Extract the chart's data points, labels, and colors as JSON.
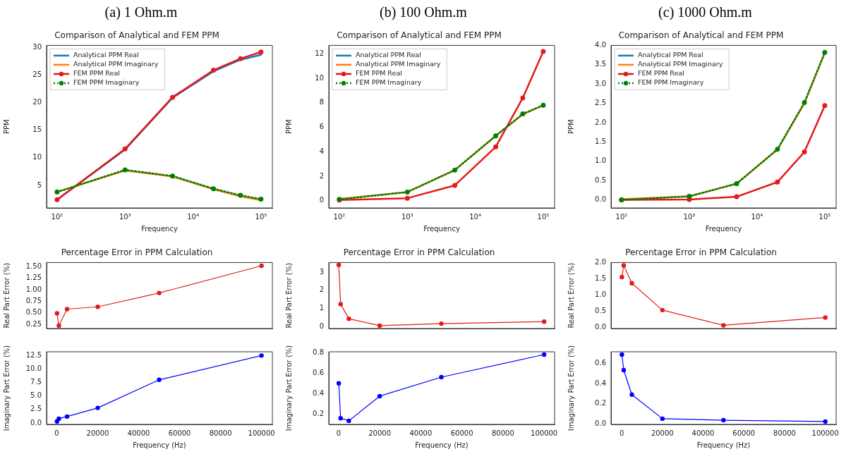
{
  "chart_data": [
    {
      "type": "line",
      "title": "(a) 1 Ohm.m",
      "subtitle": "Comparison of Analytical and FEM PPM",
      "xlabel": "Frequency",
      "ylabel": "PPM",
      "log": "x",
      "legend": "top left",
      "x": [
        100,
        1000,
        5000,
        20000,
        50000,
        100000
      ],
      "xlim": [
        70,
        147000
      ],
      "xticks": [
        {
          "value": 100,
          "label": "10²"
        },
        {
          "value": 1000,
          "label": "10³"
        },
        {
          "value": 10000,
          "label": "10⁴"
        },
        {
          "value": 100000,
          "label": "10⁵"
        }
      ],
      "ylim": [
        0.9,
        30.4
      ],
      "yticks": [
        5,
        10,
        15,
        20,
        25,
        30
      ],
      "series": [
        {
          "name": "Analytical PPM Real",
          "color": "#1f77b4",
          "values": [
            2.4,
            11.5,
            20.9,
            25.7,
            27.8,
            28.7
          ],
          "marker": "none",
          "line_style": "solid"
        },
        {
          "name": "Analytical PPM Imaginary",
          "color": "#ff7f0e",
          "values": [
            3.8,
            7.7,
            6.6,
            4.3,
            3.0,
            2.3
          ],
          "marker": "none",
          "line_style": "solid"
        },
        {
          "name": "FEM PPM Real",
          "color": "#e31a1c",
          "values": [
            2.4,
            11.6,
            21.0,
            25.9,
            28.0,
            29.2
          ],
          "marker": "circle",
          "line_style": "solid"
        },
        {
          "name": "FEM PPM Imaginary",
          "color": "#008000",
          "values": [
            3.8,
            7.8,
            6.7,
            4.4,
            3.2,
            2.5
          ],
          "marker": "circle",
          "line_style": "dotted"
        }
      ]
    },
    {
      "type": "line",
      "title": "(b) 100 Ohm.m",
      "subtitle": "Comparison of Analytical and FEM PPM",
      "xlabel": "Frequency",
      "ylabel": "PPM",
      "log": "x",
      "legend": "top left",
      "x": [
        100,
        1000,
        5000,
        20000,
        50000,
        100000
      ],
      "xlim": [
        70,
        147000
      ],
      "xticks": [
        {
          "value": 100,
          "label": "10²"
        },
        {
          "value": 1000,
          "label": "10³"
        },
        {
          "value": 10000,
          "label": "10⁴"
        },
        {
          "value": 100000,
          "label": "10⁵"
        }
      ],
      "ylim": [
        -0.6,
        12.7
      ],
      "yticks": [
        0,
        2,
        4,
        6,
        8,
        10,
        12
      ],
      "series": [
        {
          "name": "Analytical PPM Real",
          "color": "#1f77b4",
          "values": [
            null,
            null,
            null,
            null,
            null,
            null
          ],
          "marker": "none",
          "line_style": "solid"
        },
        {
          "name": "Analytical PPM Imaginary",
          "color": "#ff7f0e",
          "values": [
            0.13,
            0.7,
            2.5,
            5.3,
            7.05,
            7.8
          ],
          "marker": "none",
          "line_style": "solid"
        },
        {
          "name": "FEM PPM Real",
          "color": "#e31a1c",
          "values": [
            0.05,
            0.2,
            1.25,
            4.4,
            8.4,
            12.2
          ],
          "marker": "circle",
          "line_style": "solid"
        },
        {
          "name": "FEM PPM Imaginary",
          "color": "#008000",
          "values": [
            0.1,
            0.7,
            2.5,
            5.3,
            7.1,
            7.8
          ],
          "marker": "circle",
          "line_style": "dotted"
        }
      ]
    },
    {
      "type": "line",
      "title": "(c) 1000 Ohm.m",
      "subtitle": "Comparison of Analytical and FEM PPM",
      "xlabel": "Frequency",
      "ylabel": "PPM",
      "log": "x",
      "legend": "top left",
      "x": [
        100,
        1000,
        5000,
        20000,
        50000,
        100000
      ],
      "xlim": [
        70,
        147000
      ],
      "xticks": [
        {
          "value": 100,
          "label": "10²"
        },
        {
          "value": 1000,
          "label": "10³"
        },
        {
          "value": 10000,
          "label": "10⁴"
        },
        {
          "value": 100000,
          "label": "10⁵"
        }
      ],
      "ylim": [
        -0.21,
        4.0
      ],
      "yticks": [
        {
          "value": 0,
          "label": "0.0"
        },
        0.5,
        {
          "value": 1,
          "label": "1.0"
        },
        1.5,
        {
          "value": 2,
          "label": "2.0"
        },
        2.5,
        {
          "value": 3,
          "label": "3.0"
        },
        3.5,
        {
          "value": 4,
          "label": "4.0"
        }
      ],
      "series": [
        {
          "name": "Analytical PPM Real",
          "color": "#1f77b4",
          "values": [
            null,
            null,
            null,
            null,
            null,
            null
          ],
          "marker": "none",
          "line_style": "solid"
        },
        {
          "name": "Analytical PPM Imaginary",
          "color": "#ff7f0e",
          "values": [
            0.02,
            0.09,
            0.42,
            1.3,
            2.5,
            3.8
          ],
          "marker": "none",
          "line_style": "solid"
        },
        {
          "name": "FEM PPM Real",
          "color": "#e31a1c",
          "values": [
            0.0,
            0.01,
            0.08,
            0.46,
            1.24,
            2.44
          ],
          "marker": "circle",
          "line_style": "solid"
        },
        {
          "name": "FEM PPM Imaginary",
          "color": "#008000",
          "values": [
            0.0,
            0.09,
            0.42,
            1.31,
            2.52,
            3.82
          ],
          "marker": "circle",
          "line_style": "dotted"
        }
      ]
    },
    {
      "type": "line",
      "title": "Percentage Error in PPM Calculation",
      "ylabel": "Real Part Error (%)",
      "tick_labels": "y",
      "marker": "circle",
      "x": [
        100,
        1000,
        5000,
        20000,
        50000,
        100000
      ],
      "xlim": [
        -5000,
        105300
      ],
      "xticks": [
        0,
        20000,
        40000,
        60000,
        80000,
        100000
      ],
      "ylim": [
        0.16,
        1.59
      ],
      "yticks": [
        0.25,
        {
          "value": 0.5,
          "label": "0.50"
        },
        0.75,
        {
          "value": 1,
          "label": "1.00"
        },
        1.25,
        {
          "value": 1.5,
          "label": "1.50"
        }
      ],
      "series": [
        {
          "color": "#e31a1c",
          "values": [
            0.49,
            0.22,
            0.58,
            0.63,
            0.93,
            1.52
          ]
        }
      ]
    },
    {
      "type": "line",
      "xlabel": "Frequency (Hz)",
      "ylabel": "Imaginary Part Error (%)",
      "marker": "circle",
      "x": [
        100,
        1000,
        5000,
        20000,
        50000,
        100000
      ],
      "xlim": [
        -5000,
        105300
      ],
      "xticks": [
        0,
        20000,
        40000,
        60000,
        80000,
        100000
      ],
      "ylim": [
        -0.26,
        13.2
      ],
      "yticks": [
        {
          "value": 0,
          "label": "0.0"
        },
        2.5,
        {
          "value": 5,
          "label": "5.0"
        },
        7.5,
        {
          "value": 10,
          "label": "10.0"
        },
        12.5
      ],
      "series": [
        {
          "color": "#0000ff",
          "values": [
            0.3,
            0.8,
            1.2,
            2.8,
            8.0,
            12.5
          ]
        }
      ]
    },
    {
      "type": "line",
      "title": "Percentage Error in PPM Calculation",
      "ylabel": "Real Part Error (%)",
      "tick_labels": "y",
      "marker": "circle",
      "x": [
        100,
        1000,
        5000,
        20000,
        50000,
        100000
      ],
      "xlim": [
        -4750,
        105100
      ],
      "xticks": [
        0,
        20000,
        40000,
        60000,
        80000,
        100000
      ],
      "ylim": [
        -0.12,
        3.53
      ],
      "yticks": [
        0,
        1,
        2,
        3
      ],
      "series": [
        {
          "color": "#e31a1c",
          "values": [
            3.4,
            1.23,
            0.42,
            0.04,
            0.15,
            0.26
          ]
        }
      ]
    },
    {
      "type": "line",
      "xlabel": "Frequency (Hz)",
      "ylabel": "Imaginary Part Error (%)",
      "marker": "circle",
      "x": [
        100,
        1000,
        5000,
        20000,
        50000,
        100000
      ],
      "xlim": [
        -4750,
        105100
      ],
      "xticks": [
        0,
        20000,
        40000,
        60000,
        80000,
        100000
      ],
      "ylim": [
        0.1,
        0.807
      ],
      "yticks": [
        0.2,
        0.4,
        0.6,
        0.8
      ],
      "series": [
        {
          "color": "#0000ff",
          "values": [
            0.5,
            0.16,
            0.135,
            0.375,
            0.56,
            0.78
          ]
        }
      ]
    },
    {
      "type": "line",
      "title": "Percentage Error in PPM Calculation",
      "ylabel": "Real Part Error (%)",
      "tick_labels": "y",
      "marker": "circle",
      "x": [
        100,
        1000,
        5000,
        20000,
        50000,
        100000
      ],
      "xlim": [
        -5220,
        105300
      ],
      "xticks": [
        0,
        20000,
        40000,
        60000,
        80000,
        100000
      ],
      "ylim": [
        -0.04,
        2.0
      ],
      "yticks": [
        {
          "value": 0,
          "label": "0.0"
        },
        0.5,
        {
          "value": 1,
          "label": "1.0"
        },
        1.5,
        {
          "value": 2,
          "label": "2.0"
        }
      ],
      "series": [
        {
          "color": "#e31a1c",
          "values": [
            1.55,
            1.91,
            1.36,
            0.53,
            0.06,
            0.3
          ]
        }
      ]
    },
    {
      "type": "line",
      "xlabel": "Frequency (Hz)",
      "ylabel": "Imaginary Part Error (%)",
      "marker": "circle",
      "x": [
        100,
        1000,
        5000,
        20000,
        50000,
        100000
      ],
      "xlim": [
        -5220,
        105300
      ],
      "xticks": [
        0,
        20000,
        40000,
        60000,
        80000,
        100000
      ],
      "ylim": [
        -0.007,
        0.718
      ],
      "yticks": [
        {
          "value": 0,
          "label": "0.0"
        },
        0.2,
        0.4,
        0.6
      ],
      "series": [
        {
          "color": "#0000ff",
          "values": [
            0.69,
            0.535,
            0.29,
            0.05,
            0.035,
            0.022
          ]
        }
      ]
    }
  ]
}
